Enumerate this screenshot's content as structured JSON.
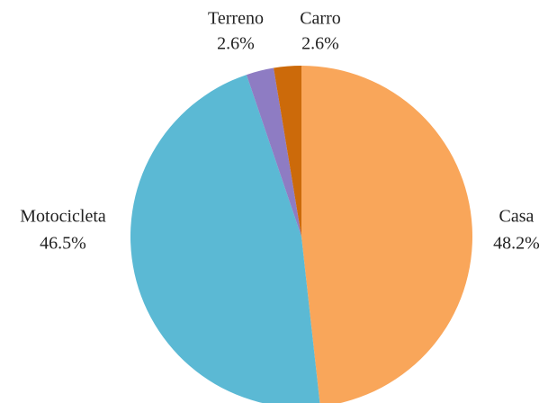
{
  "chart_data": {
    "type": "pie",
    "categories": [
      "Casa",
      "Motocicleta",
      "Terreno",
      "Carro"
    ],
    "values": [
      48.2,
      46.5,
      2.6,
      2.6
    ],
    "value_labels": [
      "48.2%",
      "46.5%",
      "2.6%",
      "2.6%"
    ],
    "colors": [
      "#f9a65a",
      "#5bb9d4",
      "#8e7cc3",
      "#cc6a0a"
    ]
  }
}
